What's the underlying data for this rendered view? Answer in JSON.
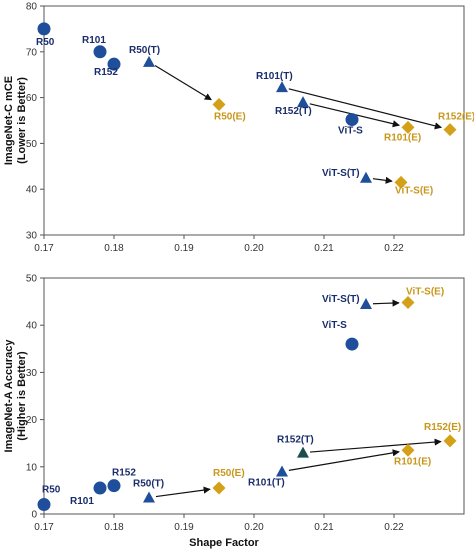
{
  "colors": {
    "circle": "#1f4e9a",
    "triangle": "#1f4e9a",
    "triangle_dark": "#1b4d4d",
    "diamond": "#d4a017",
    "label_blue": "#1a2d6b",
    "label_gold": "#c9961a",
    "arrow": "#111111",
    "frame": "#555555"
  },
  "chart_data": [
    {
      "type": "scatter",
      "ylabel_lines": [
        "ImageNet-C  mCE",
        "(Lower is Better)"
      ],
      "xlabel": "",
      "xlim": [
        0.17,
        0.23
      ],
      "ylim": [
        30,
        80
      ],
      "xticks": [
        "0.17",
        "0.18",
        "0.19",
        "0.20",
        "0.21",
        "0.22"
      ],
      "yticks": [
        "30",
        "40",
        "50",
        "60",
        "70",
        "80"
      ],
      "points": [
        {
          "label": "R50",
          "x": 0.17,
          "y": 75.0,
          "marker": "circle",
          "color": "circle",
          "label_color": "label_blue"
        },
        {
          "label": "R101",
          "x": 0.178,
          "y": 70.0,
          "marker": "circle",
          "color": "circle",
          "label_color": "label_blue"
        },
        {
          "label": "R152",
          "x": 0.18,
          "y": 67.3,
          "marker": "circle",
          "color": "circle",
          "label_color": "label_blue"
        },
        {
          "label": "ViT-S",
          "x": 0.214,
          "y": 55.2,
          "marker": "circle",
          "color": "circle",
          "label_color": "label_blue"
        },
        {
          "label": "R50(T)",
          "x": 0.185,
          "y": 67.8,
          "marker": "triangle",
          "color": "triangle",
          "label_color": "label_blue"
        },
        {
          "label": "R101(T)",
          "x": 0.204,
          "y": 62.3,
          "marker": "triangle",
          "color": "triangle",
          "label_color": "label_blue"
        },
        {
          "label": "R152(T)",
          "x": 0.207,
          "y": 59.0,
          "marker": "triangle",
          "color": "triangle",
          "label_color": "label_blue"
        },
        {
          "label": "ViT-S(T)",
          "x": 0.216,
          "y": 42.5,
          "marker": "triangle",
          "color": "triangle",
          "label_color": "label_blue"
        },
        {
          "label": "R50(E)",
          "x": 0.195,
          "y": 58.5,
          "marker": "diamond",
          "color": "diamond",
          "label_color": "label_gold"
        },
        {
          "label": "R101(E)",
          "x": 0.222,
          "y": 53.5,
          "marker": "diamond",
          "color": "diamond",
          "label_color": "label_gold"
        },
        {
          "label": "R152(E)",
          "x": 0.228,
          "y": 53.0,
          "marker": "diamond",
          "color": "diamond",
          "label_color": "label_gold"
        },
        {
          "label": "ViT-S(E)",
          "x": 0.221,
          "y": 41.5,
          "marker": "diamond",
          "color": "diamond",
          "label_color": "label_gold"
        }
      ],
      "arrows": [
        {
          "from": "R50(T)",
          "to": "R50(E)"
        },
        {
          "from": "R101(T)",
          "to": "R152(E)"
        },
        {
          "from": "R152(T)",
          "to": "R101(E)"
        },
        {
          "from": "ViT-S(T)",
          "to": "ViT-S(E)"
        }
      ]
    },
    {
      "type": "scatter",
      "ylabel_lines": [
        "ImageNet-A Accuracy",
        "(Higher is Better)"
      ],
      "xlabel": "Shape Factor",
      "xlim": [
        0.17,
        0.23
      ],
      "ylim": [
        0,
        50
      ],
      "xticks": [
        "0.17",
        "0.18",
        "0.19",
        "0.20",
        "0.21",
        "0.22"
      ],
      "yticks": [
        "0",
        "10",
        "20",
        "30",
        "40",
        "50"
      ],
      "points": [
        {
          "label": "R50",
          "x": 0.17,
          "y": 2.0,
          "marker": "circle",
          "color": "circle",
          "label_color": "label_blue"
        },
        {
          "label": "R101",
          "x": 0.178,
          "y": 5.5,
          "marker": "circle",
          "color": "circle",
          "label_color": "label_blue"
        },
        {
          "label": "R152",
          "x": 0.18,
          "y": 6.0,
          "marker": "circle",
          "color": "circle",
          "label_color": "label_blue"
        },
        {
          "label": "ViT-S",
          "x": 0.214,
          "y": 36.0,
          "marker": "circle",
          "color": "circle",
          "label_color": "label_blue"
        },
        {
          "label": "R50(T)",
          "x": 0.185,
          "y": 3.5,
          "marker": "triangle",
          "color": "triangle",
          "label_color": "label_blue"
        },
        {
          "label": "R101(T)",
          "x": 0.204,
          "y": 9.0,
          "marker": "triangle",
          "color": "triangle",
          "label_color": "label_blue"
        },
        {
          "label": "R152(T)",
          "x": 0.207,
          "y": 13.0,
          "marker": "triangle",
          "color": "triangle_dark",
          "label_color": "label_blue"
        },
        {
          "label": "ViT-S(T)",
          "x": 0.216,
          "y": 44.5,
          "marker": "triangle",
          "color": "triangle",
          "label_color": "label_blue"
        },
        {
          "label": "R50(E)",
          "x": 0.195,
          "y": 5.5,
          "marker": "diamond",
          "color": "diamond",
          "label_color": "label_gold"
        },
        {
          "label": "R101(E)",
          "x": 0.222,
          "y": 13.5,
          "marker": "diamond",
          "color": "diamond",
          "label_color": "label_gold"
        },
        {
          "label": "R152(E)",
          "x": 0.228,
          "y": 15.5,
          "marker": "diamond",
          "color": "diamond",
          "label_color": "label_gold"
        },
        {
          "label": "ViT-S(E)",
          "x": 0.222,
          "y": 44.8,
          "marker": "diamond",
          "color": "diamond",
          "label_color": "label_gold"
        }
      ],
      "arrows": [
        {
          "from": "R50(T)",
          "to": "R50(E)"
        },
        {
          "from": "R101(T)",
          "to": "R101(E)"
        },
        {
          "from": "R152(T)",
          "to": "R152(E)"
        },
        {
          "from": "ViT-S(T)",
          "to": "ViT-S(E)"
        }
      ]
    }
  ]
}
